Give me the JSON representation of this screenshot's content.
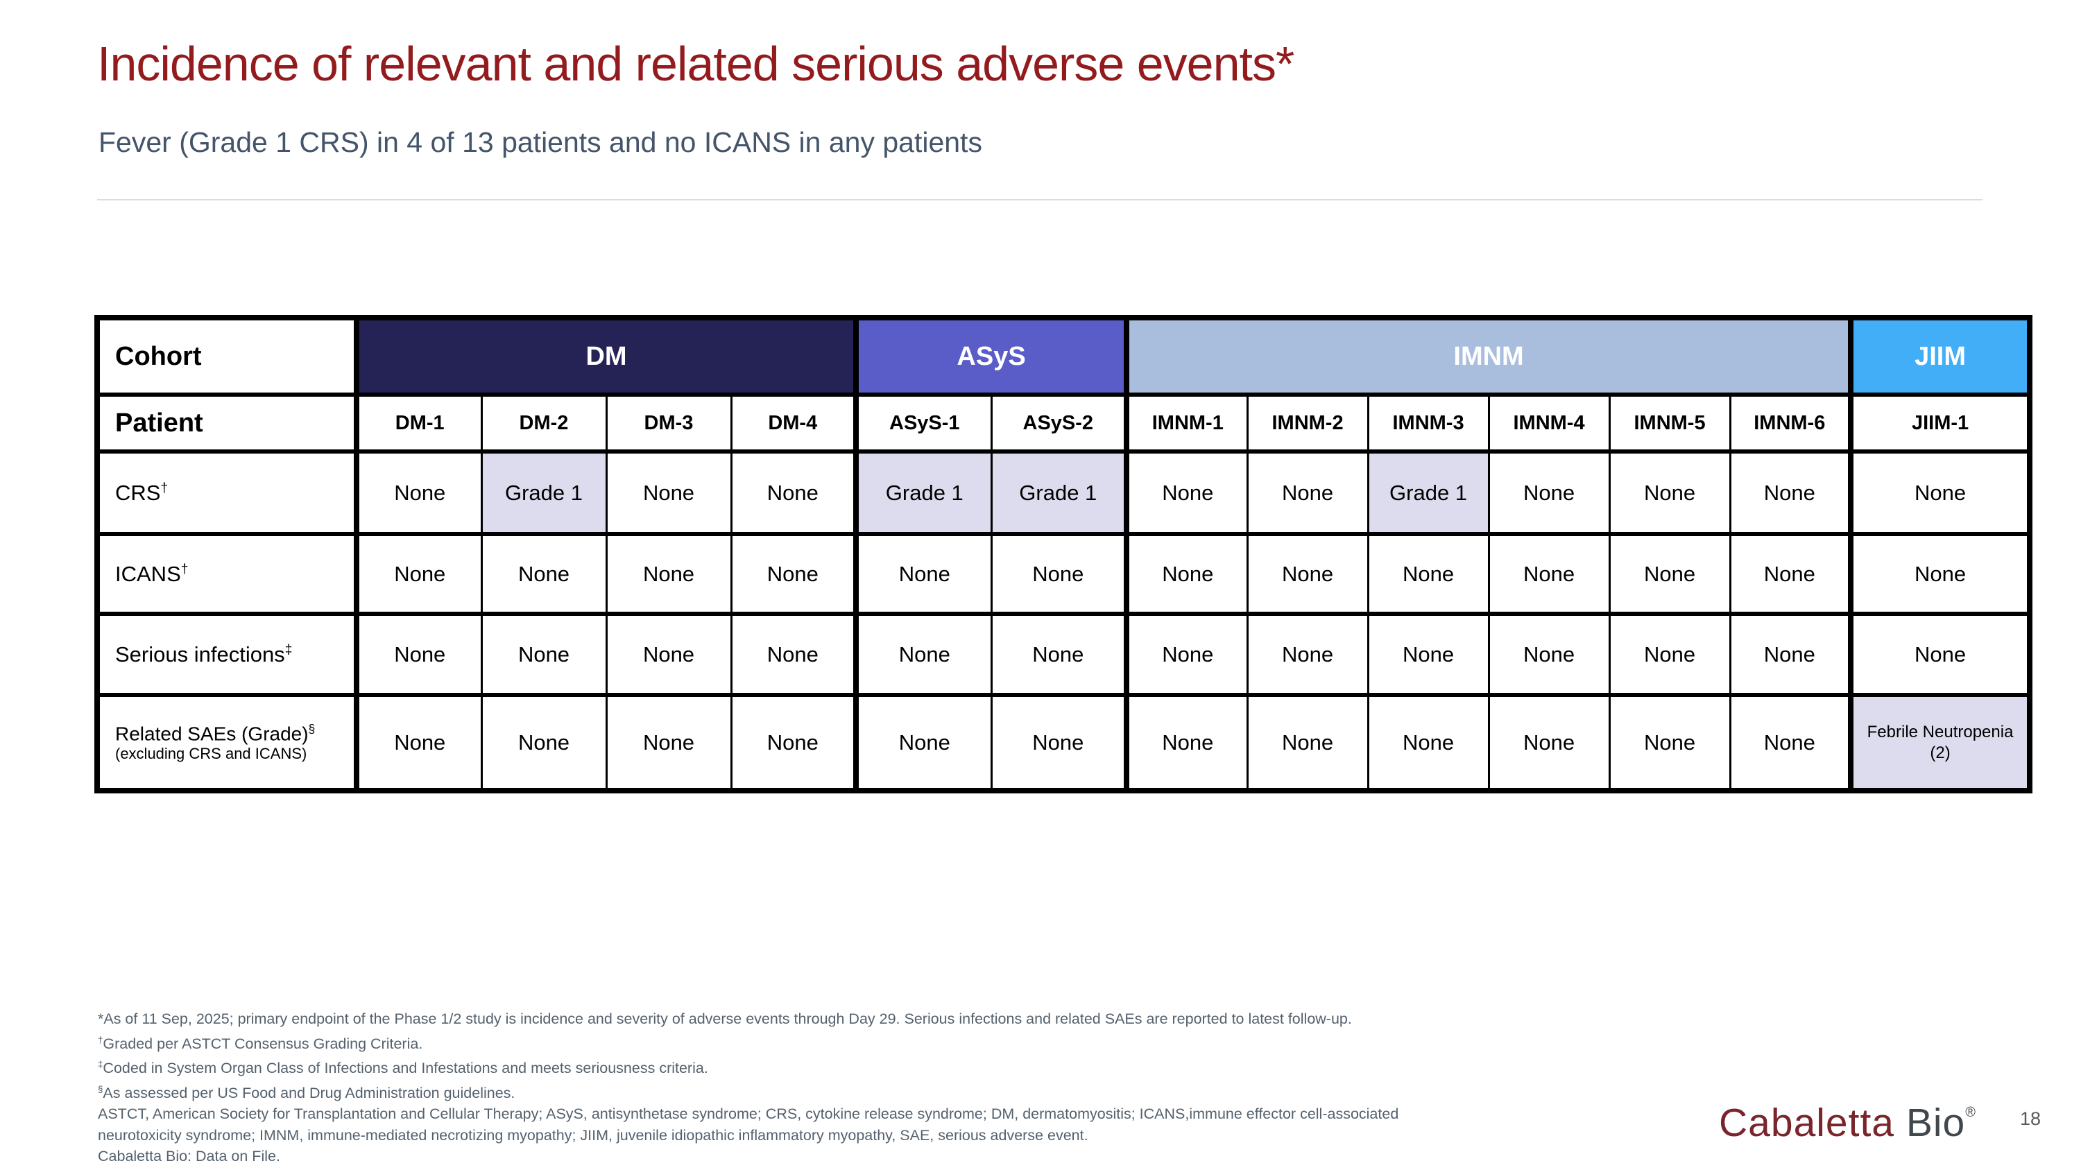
{
  "slide": {
    "title": "Incidence of relevant and related serious adverse events*",
    "subtitle": "Fever (Grade 1 CRS) in 4 of 13 patients and no ICANS in any patients"
  },
  "colors": {
    "title": "#931b1e",
    "subtitle": "#44546a",
    "footnote": "#54616d",
    "dm": "#252355",
    "asys": "#5a5cc8",
    "imnm": "#a9bddd",
    "jiim": "#42aef7",
    "highlight": "#dcdcee",
    "logoMaroon": "#7a242c",
    "logoGray": "#40484d"
  },
  "table": {
    "corner_label": "Cohort",
    "patient_label": "Patient",
    "cohorts": [
      {
        "name": "DM",
        "key": "dm",
        "patients": [
          "DM-1",
          "DM-2",
          "DM-3",
          "DM-4"
        ]
      },
      {
        "name": "ASyS",
        "key": "asys",
        "patients": [
          "ASyS-1",
          "ASyS-2"
        ]
      },
      {
        "name": "IMNM",
        "key": "imnm",
        "patients": [
          "IMNM-1",
          "IMNM-2",
          "IMNM-3",
          "IMNM-4",
          "IMNM-5",
          "IMNM-6"
        ]
      },
      {
        "name": "JIIM",
        "key": "jiim",
        "patients": [
          "JIIM-1"
        ]
      }
    ],
    "rows": [
      {
        "label": "CRS",
        "sup": "†",
        "sublabel": "",
        "values": [
          "None",
          "Grade 1",
          "None",
          "None",
          "Grade 1",
          "Grade 1",
          "None",
          "None",
          "Grade 1",
          "None",
          "None",
          "None",
          "None"
        ],
        "highlighted": [
          1,
          4,
          5,
          8
        ]
      },
      {
        "label": "ICANS",
        "sup": "†",
        "sublabel": "",
        "values": [
          "None",
          "None",
          "None",
          "None",
          "None",
          "None",
          "None",
          "None",
          "None",
          "None",
          "None",
          "None",
          "None"
        ],
        "highlighted": []
      },
      {
        "label": "Serious infections",
        "sup": "‡",
        "sublabel": "",
        "values": [
          "None",
          "None",
          "None",
          "None",
          "None",
          "None",
          "None",
          "None",
          "None",
          "None",
          "None",
          "None",
          "None"
        ],
        "highlighted": []
      },
      {
        "label": "Related SAEs (Grade)",
        "sup": "§",
        "sublabel": "(excluding CRS and ICANS)",
        "values": [
          "None",
          "None",
          "None",
          "None",
          "None",
          "None",
          "None",
          "None",
          "None",
          "None",
          "None",
          "None",
          "Febrile Neutropenia (2)"
        ],
        "highlighted": [
          12
        ]
      }
    ]
  },
  "footnotes": [
    {
      "sup": "",
      "text": "*As of 11 Sep, 2025; primary endpoint of the Phase 1/2 study is incidence and severity of adverse events through Day 29. Serious infections and related SAEs are reported to latest follow-up."
    },
    {
      "sup": "†",
      "text": "Graded per ASTCT Consensus Grading Criteria."
    },
    {
      "sup": "‡",
      "text": "Coded in System Organ Class of Infections and Infestations and meets seriousness criteria."
    },
    {
      "sup": "§",
      "text": "As assessed per US Food and Drug Administration guidelines."
    },
    {
      "sup": "",
      "text": "ASTCT, American Society for Transplantation and Cellular Therapy; ASyS, antisynthetase syndrome; CRS, cytokine release syndrome; DM, dermatomyositis; ICANS,immune effector cell-associated"
    },
    {
      "sup": "",
      "text": "neurotoxicity syndrome; IMNM, immune-mediated necrotizing myopathy; JIIM, juvenile idiopathic inflammatory myopathy, SAE, serious adverse event."
    },
    {
      "sup": "",
      "text": "Cabaletta Bio: Data on File."
    }
  ],
  "footer": {
    "logo_word1": "Cabaletta",
    "logo_word2": "Bio",
    "logo_reg": "®",
    "page_number": "18"
  }
}
